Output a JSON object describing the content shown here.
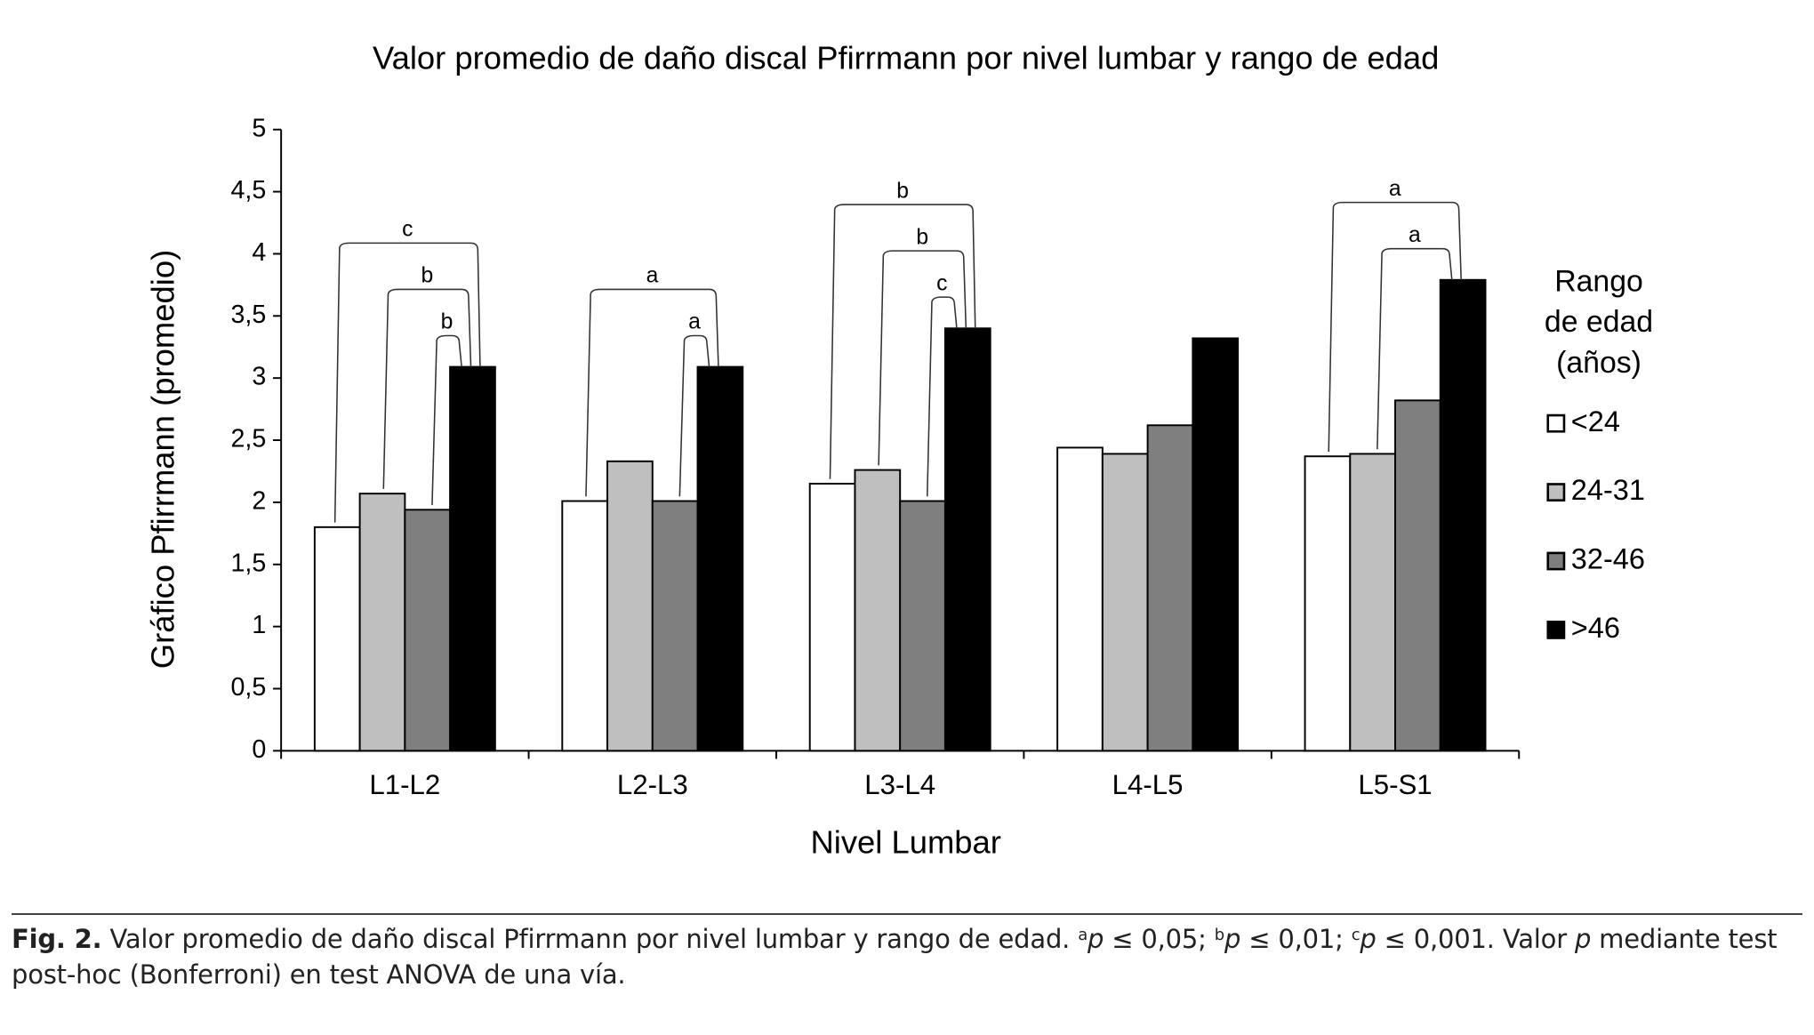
{
  "chart_data": {
    "type": "bar",
    "title": "Valor promedio de daño discal Pfirrmann por nivel lumbar y rango de edad",
    "x_label": "Nivel Lumbar",
    "y_label": "Gráfico Pfirrmann (promedio)",
    "categories": [
      "L1-L2",
      "L2-L3",
      "L3-L4",
      "L4-L5",
      "L5-S1"
    ],
    "series": [
      {
        "name": "<24",
        "color": "#ffffff",
        "values": [
          1.8,
          2.01,
          2.15,
          2.44,
          2.37
        ]
      },
      {
        "name": "24-31",
        "color": "#bfbfbf",
        "values": [
          2.07,
          2.33,
          2.26,
          2.39,
          2.39
        ]
      },
      {
        "name": "32-46",
        "color": "#7f7f7f",
        "values": [
          1.94,
          2.01,
          2.01,
          2.62,
          2.82
        ]
      },
      {
        "name": ">46",
        "color": "#000000",
        "values": [
          3.09,
          3.09,
          3.4,
          3.32,
          3.79
        ]
      }
    ],
    "ylim": [
      0,
      5
    ],
    "yticks": [
      0,
      {
        "value": 0.5,
        "label": "0,5"
      },
      1,
      {
        "value": 1.5,
        "label": "1,5"
      },
      2,
      {
        "value": 2.5,
        "label": "2,5"
      },
      3,
      {
        "value": 3.5,
        "label": "3,5"
      },
      4,
      {
        "value": 4.5,
        "label": "4,5"
      },
      5
    ],
    "legend_title": [
      "Rango",
      "de edad",
      "(años)"
    ],
    "legend": "right",
    "brackets": [
      {
        "category": 0,
        "from": 0,
        "to": 3,
        "label": "c"
      },
      {
        "category": 0,
        "from": 1,
        "to": 3,
        "label": "b"
      },
      {
        "category": 0,
        "from": 2,
        "to": 3,
        "label": "b"
      },
      {
        "category": 1,
        "from": 0,
        "to": 3,
        "label": "a"
      },
      {
        "category": 1,
        "from": 2,
        "to": 3,
        "label": "a"
      },
      {
        "category": 2,
        "from": 0,
        "to": 3,
        "label": "b"
      },
      {
        "category": 2,
        "from": 1,
        "to": 3,
        "label": "b"
      },
      {
        "category": 2,
        "from": 2,
        "to": 3,
        "label": "c"
      },
      {
        "category": 4,
        "from": 0,
        "to": 3,
        "label": "a"
      },
      {
        "category": 4,
        "from": 1,
        "to": 3,
        "label": "a"
      }
    ]
  },
  "caption": {
    "label": "Fig. 2.",
    "parts": [
      {
        "text": " Valor promedio de daño discal Pfirrmann por nivel lumbar y rango de edad. ",
        "style": "normal"
      },
      {
        "text": "a",
        "style": "sup"
      },
      {
        "text": "p",
        "style": "italic"
      },
      {
        "text": " ≤ 0,05; ",
        "style": "normal"
      },
      {
        "text": "b",
        "style": "sup"
      },
      {
        "text": "p",
        "style": "italic"
      },
      {
        "text": " ≤ 0,01; ",
        "style": "normal"
      },
      {
        "text": "c",
        "style": "sup"
      },
      {
        "text": "p",
        "style": "italic"
      },
      {
        "text": " ≤ 0,001. Valor ",
        "style": "normal"
      },
      {
        "text": "p",
        "style": "italic"
      },
      {
        "text": " mediante test post-hoc (Bonferroni) en test ANOVA de una vía.",
        "style": "normal"
      }
    ]
  }
}
